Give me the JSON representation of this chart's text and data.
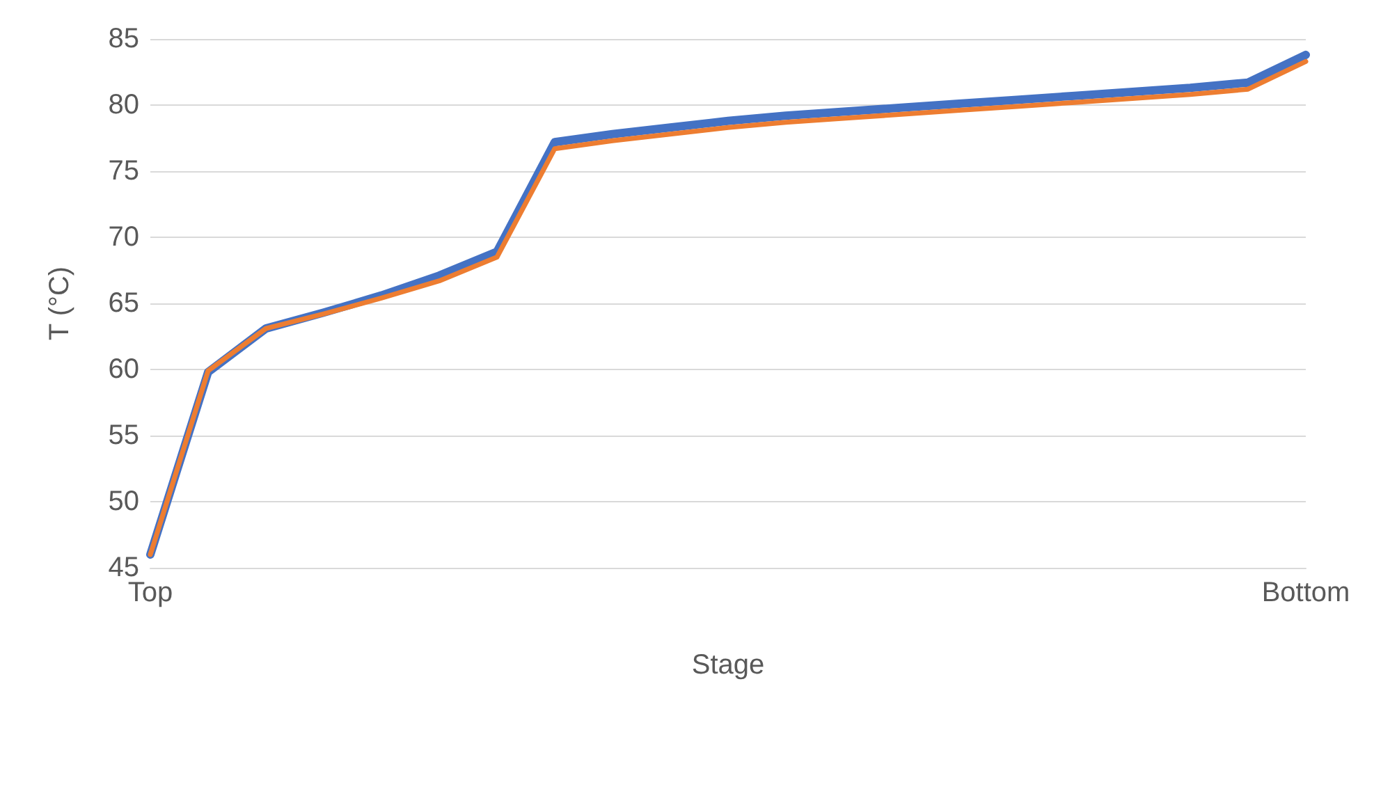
{
  "chart_data": {
    "type": "line",
    "xlabel": "Stage",
    "ylabel": "T (°C)",
    "categories": [
      "Top",
      null,
      null,
      null,
      null,
      null,
      null,
      null,
      null,
      null,
      null,
      null,
      null,
      null,
      null,
      null,
      null,
      null,
      null,
      null,
      "Bottom"
    ],
    "series": [
      {
        "color": "#4472c4",
        "values": [
          46,
          59.8,
          63.1,
          64.3,
          65.6,
          67.1,
          68.9,
          77.2,
          77.8,
          78.3,
          78.8,
          79.2,
          79.5,
          79.8,
          80.1,
          80.4,
          80.7,
          81.0,
          81.3,
          81.7,
          83.8
        ]
      },
      {
        "color": "#ed7d31",
        "values": [
          46,
          59.9,
          63.1,
          64.2,
          65.4,
          66.7,
          68.5,
          76.7,
          77.3,
          77.8,
          78.3,
          78.7,
          79.0,
          79.3,
          79.6,
          79.9,
          80.2,
          80.5,
          80.8,
          81.2,
          83.3
        ]
      }
    ],
    "ylim": [
      45,
      85
    ],
    "yticks": [
      45,
      50,
      55,
      60,
      65,
      70,
      75,
      80,
      85
    ],
    "grid": "y",
    "legend": false,
    "marker": "none",
    "line_style": "solid"
  }
}
